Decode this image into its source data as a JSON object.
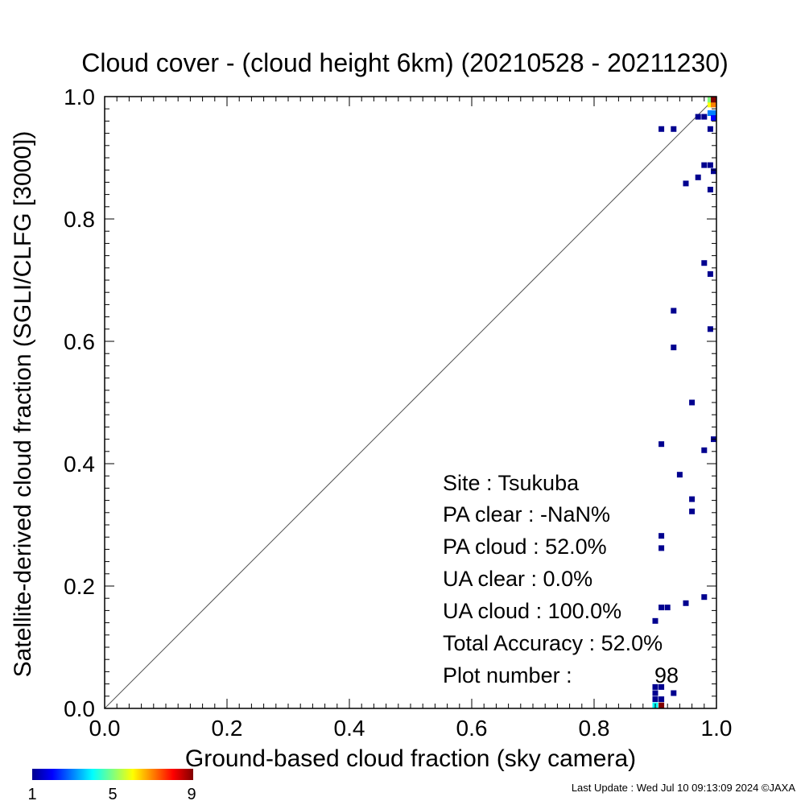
{
  "chart_data": {
    "type": "heatmap",
    "title": "Cloud cover - (cloud height 6km)  (20210528 - 20211230)",
    "xlabel": "Ground-based cloud fraction (sky camera)",
    "ylabel": "Satellite-derived cloud fraction (SGLI/CLFG [3000])",
    "xlim": [
      0.0,
      1.0
    ],
    "ylim": [
      0.0,
      1.0
    ],
    "x_ticks": [
      "0.0",
      "0.2",
      "0.4",
      "0.6",
      "0.8",
      "1.0"
    ],
    "y_ticks": [
      "0.0",
      "0.2",
      "0.4",
      "0.6",
      "0.8",
      "1.0"
    ],
    "reference_line": "y = x",
    "grid": false,
    "colorbar": {
      "min": 1,
      "max": 9,
      "labels": [
        "1",
        "5",
        "9"
      ]
    },
    "points": [
      {
        "x": 0.91,
        "y": 0.947,
        "count": 1
      },
      {
        "x": 0.93,
        "y": 0.947,
        "count": 1
      },
      {
        "x": 0.97,
        "y": 0.967,
        "count": 1
      },
      {
        "x": 0.98,
        "y": 0.967,
        "count": 1
      },
      {
        "x": 0.99,
        "y": 0.947,
        "count": 1
      },
      {
        "x": 0.99,
        "y": 0.973,
        "count": 3
      },
      {
        "x": 1.0,
        "y": 0.973,
        "count": 3
      },
      {
        "x": 1.0,
        "y": 0.965,
        "count": 2
      },
      {
        "x": 0.99,
        "y": 0.987,
        "count": 6
      },
      {
        "x": 1.0,
        "y": 0.987,
        "count": 7
      },
      {
        "x": 0.99,
        "y": 0.995,
        "count": 5
      },
      {
        "x": 1.0,
        "y": 0.995,
        "count": 9
      },
      {
        "x": 0.98,
        "y": 0.888,
        "count": 1
      },
      {
        "x": 0.99,
        "y": 0.888,
        "count": 1
      },
      {
        "x": 1.0,
        "y": 0.878,
        "count": 1
      },
      {
        "x": 0.97,
        "y": 0.868,
        "count": 1
      },
      {
        "x": 0.95,
        "y": 0.858,
        "count": 1
      },
      {
        "x": 0.99,
        "y": 0.848,
        "count": 1
      },
      {
        "x": 0.98,
        "y": 0.728,
        "count": 1
      },
      {
        "x": 0.99,
        "y": 0.71,
        "count": 1
      },
      {
        "x": 0.93,
        "y": 0.65,
        "count": 1
      },
      {
        "x": 0.99,
        "y": 0.62,
        "count": 1
      },
      {
        "x": 0.93,
        "y": 0.59,
        "count": 1
      },
      {
        "x": 0.96,
        "y": 0.5,
        "count": 1
      },
      {
        "x": 1.0,
        "y": 0.44,
        "count": 1
      },
      {
        "x": 0.91,
        "y": 0.432,
        "count": 1
      },
      {
        "x": 0.98,
        "y": 0.422,
        "count": 1
      },
      {
        "x": 0.94,
        "y": 0.382,
        "count": 1
      },
      {
        "x": 0.96,
        "y": 0.342,
        "count": 1
      },
      {
        "x": 0.96,
        "y": 0.322,
        "count": 1
      },
      {
        "x": 0.91,
        "y": 0.282,
        "count": 1
      },
      {
        "x": 0.91,
        "y": 0.262,
        "count": 1
      },
      {
        "x": 0.98,
        "y": 0.182,
        "count": 1
      },
      {
        "x": 0.95,
        "y": 0.172,
        "count": 1
      },
      {
        "x": 0.91,
        "y": 0.165,
        "count": 1
      },
      {
        "x": 0.92,
        "y": 0.165,
        "count": 1
      },
      {
        "x": 0.9,
        "y": 0.143,
        "count": 1
      },
      {
        "x": 0.9,
        "y": 0.035,
        "count": 1
      },
      {
        "x": 0.91,
        "y": 0.035,
        "count": 1
      },
      {
        "x": 0.9,
        "y": 0.025,
        "count": 1
      },
      {
        "x": 0.93,
        "y": 0.025,
        "count": 1
      },
      {
        "x": 0.9,
        "y": 0.015,
        "count": 1
      },
      {
        "x": 0.91,
        "y": 0.015,
        "count": 1
      },
      {
        "x": 0.9,
        "y": 0.005,
        "count": 4
      },
      {
        "x": 0.91,
        "y": 0.005,
        "count": 9
      }
    ]
  },
  "stats": {
    "site": "Site : Tsukuba",
    "pa_clear": "PA clear :  -NaN%",
    "pa_cloud": "PA cloud :  52.0%",
    "ua_clear": "UA clear :   0.0%",
    "ua_cloud": "UA cloud : 100.0%",
    "total_accuracy": "Total Accuracy :  52.0%",
    "plot_number_label": "Plot number :",
    "plot_number_value": "98"
  },
  "footer": {
    "last_update": "Last Update : Wed Jul 10 09:13:09 2024  ©JAXA"
  }
}
